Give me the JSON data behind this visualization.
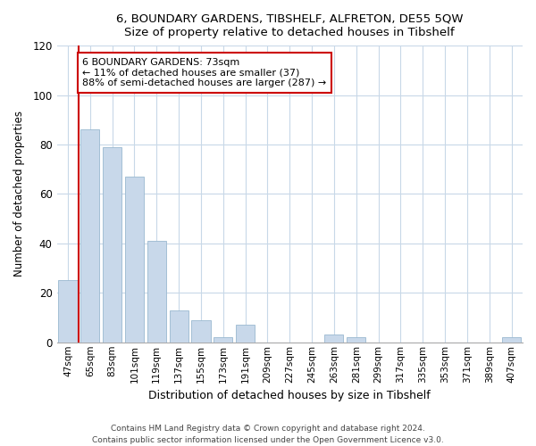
{
  "title": "6, BOUNDARY GARDENS, TIBSHELF, ALFRETON, DE55 5QW",
  "subtitle": "Size of property relative to detached houses in Tibshelf",
  "xlabel": "Distribution of detached houses by size in Tibshelf",
  "ylabel": "Number of detached properties",
  "bar_labels": [
    "47sqm",
    "65sqm",
    "83sqm",
    "101sqm",
    "119sqm",
    "137sqm",
    "155sqm",
    "173sqm",
    "191sqm",
    "209sqm",
    "227sqm",
    "245sqm",
    "263sqm",
    "281sqm",
    "299sqm",
    "317sqm",
    "335sqm",
    "353sqm",
    "371sqm",
    "389sqm",
    "407sqm"
  ],
  "bar_values": [
    25,
    86,
    79,
    67,
    41,
    13,
    9,
    2,
    7,
    0,
    0,
    0,
    3,
    2,
    0,
    0,
    0,
    0,
    0,
    0,
    2
  ],
  "bar_color": "#c8d8ea",
  "bar_edge_color": "#9ab8d0",
  "vline_x_index": 0.5,
  "annotation_title": "6 BOUNDARY GARDENS: 73sqm",
  "annotation_line1": "← 11% of detached houses are smaller (37)",
  "annotation_line2": "88% of semi-detached houses are larger (287) →",
  "annotation_box_facecolor": "#ffffff",
  "annotation_box_edgecolor": "#cc0000",
  "vline_color": "#cc0000",
  "ylim": [
    0,
    120
  ],
  "yticks": [
    0,
    20,
    40,
    60,
    80,
    100,
    120
  ],
  "grid_color": "#c8d8e8",
  "footer1": "Contains HM Land Registry data © Crown copyright and database right 2024.",
  "footer2": "Contains public sector information licensed under the Open Government Licence v3.0."
}
